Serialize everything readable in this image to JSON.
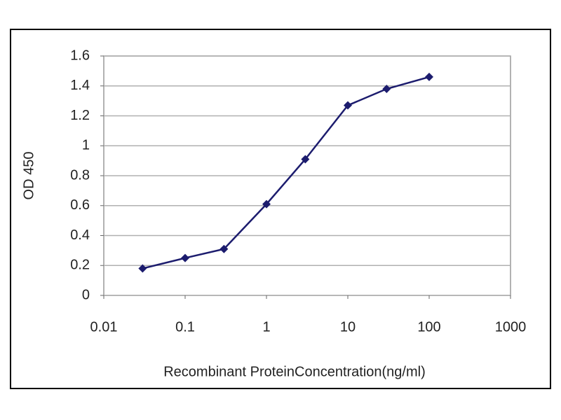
{
  "chart_data": {
    "type": "line",
    "xlabel": "Recombinant ProteinConcentration(ng/ml)",
    "ylabel": "OD 450",
    "xscale": "log",
    "x": [
      0.03,
      0.1,
      0.3,
      1,
      3,
      10,
      30,
      100
    ],
    "series": [
      {
        "color": "#1c1c6e",
        "values": [
          0.18,
          0.25,
          0.31,
          0.61,
          0.91,
          1.27,
          1.38,
          1.46
        ]
      }
    ],
    "xlim": [
      0.01,
      1000
    ],
    "xticks": [
      0.01,
      0.1,
      1,
      10,
      100,
      1000
    ],
    "ylim": [
      0,
      1.6
    ],
    "yticks": [
      0,
      0.2,
      0.4,
      0.6,
      0.8,
      1,
      1.2,
      1.4,
      1.6
    ],
    "grid": true
  }
}
